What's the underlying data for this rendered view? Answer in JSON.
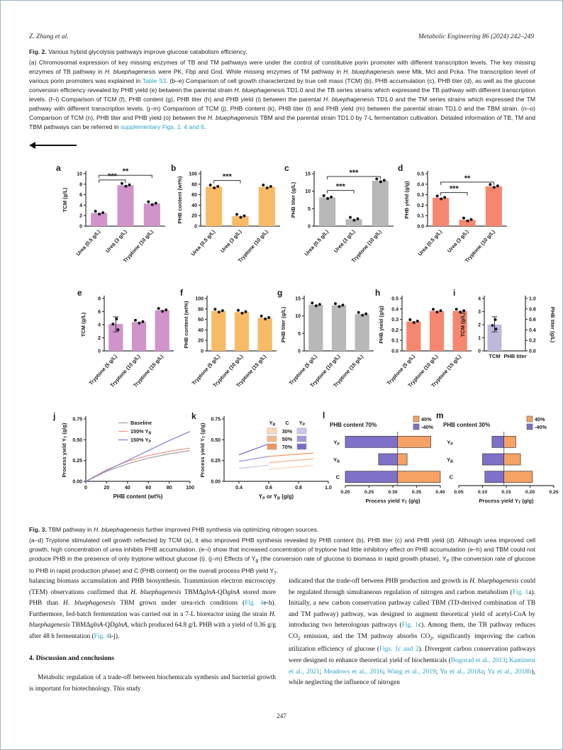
{
  "header": {
    "left": "Z. Zhang et al.",
    "right": "Metabolic Engineering 86 (2024) 242–249"
  },
  "page_number": "247",
  "colors": {
    "link_blue": "#2aa2c6",
    "bar_plum": "#d094cb",
    "bar_orange": "#f7bb66",
    "bar_gray": "#b8b8b8",
    "bar_salmon": "#f6876f",
    "bar_lavender": "#bfb8dd",
    "tornado_orange": "#f5a264",
    "tornado_purple": "#7f70ca"
  },
  "fig2": {
    "title": [
      {
        "t": "Fig. 2.",
        "s": "b"
      },
      {
        "t": " Various hybrid glycolysis pathways improve glucose catabolism efficiency."
      }
    ],
    "body": [
      {
        "t": "(a) Chromosomal expression of key missing enzymes of TB and TM pathways were under the control of constitutive porin promoter with different transcription levels. The key missing enzymes of TB pathway in "
      },
      {
        "t": "H. bluephagenesis",
        "s": "i"
      },
      {
        "t": " were PK, Fbp and Gnd. While missing enzymes of TM pathway in "
      },
      {
        "t": "H. bluephagenesis",
        "s": "i"
      },
      {
        "t": " were Mtk, Mcl and Pcka. The transcription level of various porin promoters was explained in "
      },
      {
        "t": "Table S3",
        "s": "l"
      },
      {
        "t": ". (b–e) Comparison of cell growth characterized by true cell mass (TCM) (b), PHB accumulation (c), PHB titer (d), as well as the glucose conversion efficiency revealed by PHB yield (e) between the parental strain "
      },
      {
        "t": "H. bluephagenesis",
        "s": "i"
      },
      {
        "t": " TD1.0 and the TB series strains which expressed the TB pathway with different transcription levels. (f–i) Comparison of TCM (f), PHB content (g), PHB titer (h) and PHB yield (i) between the parental "
      },
      {
        "t": "H. bluephagenesis",
        "s": "i"
      },
      {
        "t": " TD1.0 and the TM series strains which expressed the TM pathway with different transcription levels. (j–m) Comparison of TCM (j), PHB content (k), PHB titer (l) and PHB yield (m) between the parental strain TD1.0 and the TBM strain. (n–o) Comparison of TCM (n), PHB titer and PHB yield (o) between the "
      },
      {
        "t": "H. bluephagenesis",
        "s": "i"
      },
      {
        "t": " TBM and the parental strain TD1.0 by 7-L fermentation cultivation. Detailed information of TB, TM and TBM pathways can be referred in "
      },
      {
        "t": "supplementary Figs. 1, 4 and 6",
        "s": "l"
      },
      {
        "t": "."
      }
    ]
  },
  "fig3": {
    "title": [
      {
        "t": "Fig. 3.",
        "s": "b"
      },
      {
        "t": " TBM pathway in "
      },
      {
        "t": "H. bluephagenesis",
        "s": "i"
      },
      {
        "t": " further improved PHB synthesis via optimizing nitrogen sources."
      }
    ],
    "body": [
      {
        "t": "(a–d) Tryptone stimulated cell growth reflected by TCM (a), it also improved PHB synthesis revealed by PHB content (b), PHB titer (c) and PHB yield (d). Although urea improved cell growth, high concentration of urea inhibits PHB accumulation. (e–i) show that increased concentration of tryptone had little inhibitory effect on PHB accumulation (e–h) and TBM could not produce PHB in the presence of only tryptone without glucose (i). (j–m) Effects of Y"
      },
      {
        "t": "B",
        "s": "sub"
      },
      {
        "t": " (the conversion rate of glucose to biomass in rapid growth phase), Y"
      },
      {
        "t": "P",
        "s": "sub"
      },
      {
        "t": " (the conversion rate of glucose to PHB in rapid production phase) and C (PHB content) on the overall process PHB yield Y"
      },
      {
        "t": "T",
        "s": "sub"
      },
      {
        "t": "."
      }
    ]
  },
  "article": {
    "heading": "4. Discussion and conclusions",
    "left_p1": [
      {
        "t": "balancing biomass accumulation and PHB biosynthesis. Transmission electron microscopy (TEM) observations confirmed that "
      },
      {
        "t": "H. bluephagenesis",
        "s": "i"
      },
      {
        "t": " TBMΔ"
      },
      {
        "t": "glnA",
        "s": "i"
      },
      {
        "t": "-QD"
      },
      {
        "t": "glnA",
        "s": "i"
      },
      {
        "t": " stored more PHB than "
      },
      {
        "t": "H. bluephagenesis",
        "s": "i"
      },
      {
        "t": " TBM grown under urea-rich conditions ("
      },
      {
        "t": "Fig. 4",
        "s": "l"
      },
      {
        "t": "e-h). Furthermore, fed-batch fermentation was carried out in a 7-L bioreactor using the strain "
      },
      {
        "t": "H. bluephagenesis",
        "s": "i"
      },
      {
        "t": " TBMΔ"
      },
      {
        "t": "glnA",
        "s": "i"
      },
      {
        "t": "-QD"
      },
      {
        "t": "glnA",
        "s": "i"
      },
      {
        "t": ", which produced 64.8 g/L PHB with a yield of 0.36 g/g after 48 h fermentation ("
      },
      {
        "t": "Fig. 4",
        "s": "l"
      },
      {
        "t": "i-j)."
      }
    ],
    "left_p2": [
      {
        "t": "Metabolic regulation of a trade-off between biochemicals synthesis and bacterial growth is important for biotechnology. This study"
      }
    ],
    "right_p1": [
      {
        "t": "indicated that the trade-off between PHB production and growth in "
      },
      {
        "t": "H. bluephagenesis",
        "s": "i"
      },
      {
        "t": " could be regulated through simultaneous regulation of nitrogen and carbon metabolism ("
      },
      {
        "t": "Fig. 1",
        "s": "l"
      },
      {
        "t": "a). Initially, a new carbon conservation pathway called TBM (TD-derived combination of TB and TM pathway) pathway, was designed to augment theoretical yield of acetyl-CoA by introducing two heterologous pathways ("
      },
      {
        "t": "Fig. 1",
        "s": "l"
      },
      {
        "t": "c). Among them, the TB pathway reduces CO"
      },
      {
        "t": "2",
        "s": "sub"
      },
      {
        "t": " emission, and the TM pathway absorbs CO"
      },
      {
        "t": "2",
        "s": "sub"
      },
      {
        "t": ", significantly improving the carbon utilization efficiency of glucose ("
      },
      {
        "t": "Figs. 1c and 2",
        "s": "l"
      },
      {
        "t": "). Divergent carbon conservation pathways were designed to enhance theoretical yield of biochemicals ("
      },
      {
        "t": "Bogorad et al., 2013",
        "s": "l"
      },
      {
        "t": "; "
      },
      {
        "t": "Kamineni et al., 2021",
        "s": "l"
      },
      {
        "t": "; "
      },
      {
        "t": "Meadows et al., 2016",
        "s": "l"
      },
      {
        "t": "; "
      },
      {
        "t": "Wang et al., 2019",
        "s": "l"
      },
      {
        "t": "; "
      },
      {
        "t": "Yu et al., 2018a",
        "s": "l"
      },
      {
        "t": "; "
      },
      {
        "t": "Yu et al., 2018b",
        "s": "l"
      },
      {
        "t": "), while neglecting the influence of nitrogen"
      }
    ]
  },
  "chart_data": [
    {
      "panel": "a",
      "type": "bar",
      "ylabel": "TCM (g/L)",
      "ylim": [
        0,
        10
      ],
      "yticks": [
        "0",
        "2",
        "4",
        "6",
        "8",
        "10"
      ],
      "categories": [
        "Urea (0.5 g/L)",
        "Urea (3 g/L)",
        "Tryptone (10 g/L)"
      ],
      "values": [
        2.5,
        7.8,
        4.3
      ],
      "bar_color": "#d094cb",
      "sig": [
        {
          "i": 0,
          "j": 1,
          "label": "***",
          "y": 8.8
        },
        {
          "i": 0,
          "j": 2,
          "label": "**",
          "y": 9.7
        }
      ]
    },
    {
      "panel": "b",
      "type": "bar",
      "ylabel": "PHB content (wt%)",
      "ylim": [
        0,
        100
      ],
      "yticks": [
        "0",
        "20",
        "40",
        "60",
        "80",
        "100"
      ],
      "categories": [
        "Urea (0.5 g/L)",
        "Urea (3 g/L)",
        "Tryptone (10 g/L)"
      ],
      "values": [
        75,
        19,
        75
      ],
      "bar_color": "#f7bb66",
      "sig": [
        {
          "i": 0,
          "j": 1,
          "label": "***",
          "y": 87
        }
      ]
    },
    {
      "panel": "c",
      "type": "bar",
      "ylabel": "PHB titer (g/L)",
      "ylim": [
        0,
        15
      ],
      "yticks": [
        "0",
        "5",
        "10",
        "15"
      ],
      "categories": [
        "Urea (0.5 g/L)",
        "Urea (3 g/L)",
        "Tryptone (10 g/L)"
      ],
      "values": [
        8.2,
        2.0,
        13.0
      ],
      "bar_color": "#b8b8b8",
      "sig": [
        {
          "i": 0,
          "j": 1,
          "label": "***",
          "y": 10.2
        },
        {
          "i": 0,
          "j": 2,
          "label": "***",
          "y": 14.2
        }
      ]
    },
    {
      "panel": "d",
      "type": "bar",
      "ylabel": "PHB yield (g/g)",
      "ylim": [
        0,
        0.5
      ],
      "yticks": [
        "0.0",
        "0.1",
        "0.2",
        "0.3",
        "0.4",
        "0.5"
      ],
      "categories": [
        "Urea (0.5 g/L)",
        "Urea (3 g/L)",
        "Tryptone (10 g/L)"
      ],
      "values": [
        0.27,
        0.06,
        0.38
      ],
      "bar_color": "#f6876f",
      "sig": [
        {
          "i": 0,
          "j": 1,
          "label": "***",
          "y": 0.32
        },
        {
          "i": 0,
          "j": 2,
          "label": "**",
          "y": 0.42
        }
      ]
    },
    {
      "panel": "e",
      "type": "bar",
      "ylabel": "TCM (g/L)",
      "ylim": [
        0,
        8
      ],
      "yticks": [
        "0",
        "2",
        "4",
        "6",
        "8"
      ],
      "categories": [
        "Tryptone (5 g/L)",
        "Tryptone (10 g/L)",
        "Tryptone (15 g/L)"
      ],
      "values": [
        4.1,
        4.4,
        6.2
      ],
      "errs": [
        [
          2.9,
          5.2
        ],
        null,
        null
      ],
      "bar_color": "#d094cb"
    },
    {
      "panel": "f",
      "type": "bar",
      "ylabel": "PHB content (wt%)",
      "ylim": [
        0,
        100
      ],
      "yticks": [
        "0",
        "20",
        "40",
        "60",
        "80",
        "100"
      ],
      "categories": [
        "Tryptone (5 g/L)",
        "Tryptone (10 g/L)",
        "Tryptone (15 g/L)"
      ],
      "values": [
        76,
        74,
        63
      ],
      "bar_color": "#f7bb66"
    },
    {
      "panel": "g",
      "type": "bar",
      "ylabel": "PHB titer (g/L)",
      "ylim": [
        0,
        15
      ],
      "yticks": [
        "0",
        "5",
        "10",
        "15"
      ],
      "categories": [
        "Tryptone (5 g/L)",
        "Tryptone (10 g/L)",
        "Tryptone (15 g/L)"
      ],
      "values": [
        13.2,
        13.0,
        10.5
      ],
      "bar_color": "#b8b8b8"
    },
    {
      "panel": "h",
      "type": "bar",
      "ylabel": "PHB yield (g/g)",
      "ylim": [
        0,
        0.5
      ],
      "yticks": [
        "0.0",
        "0.1",
        "0.2",
        "0.3",
        "0.4",
        "0.5"
      ],
      "categories": [
        "Tryptone (5 g/L)",
        "Tryptone (10 g/L)",
        "Tryptone (15 g/L)"
      ],
      "values": [
        0.28,
        0.38,
        0.38
      ],
      "bar_color": "#f6876f"
    },
    {
      "panel": "i",
      "type": "dualbar",
      "ylabel_left": "TCM (g/L)",
      "ylabel_right": "PHB titer (g/L)",
      "ylim_left": [
        0,
        4
      ],
      "yticks_left": [
        "0",
        "1",
        "2",
        "3",
        "4"
      ],
      "ylim_right": [
        0,
        1.0
      ],
      "yticks_right": [
        "0.0",
        "0.2",
        "0.4",
        "0.6",
        "0.8",
        "1.0"
      ],
      "categories": [
        "TCM",
        "PHB titer"
      ],
      "values": [
        2.0,
        0
      ],
      "errs": [
        [
          1.45,
          2.6
        ],
        null
      ],
      "bar_color": "#bfb8dd"
    },
    {
      "panel": "j",
      "type": "line",
      "ylabel": "Process yield Y_T (g/g)",
      "xlabel": "PHB content (wt%)",
      "xlim": [
        0,
        100
      ],
      "xticks": [
        "0",
        "20",
        "40",
        "60",
        "80",
        "100"
      ],
      "ylim": [
        0,
        0.75
      ],
      "yticks": [
        "0.00",
        "0.25",
        "0.50",
        "0.75"
      ],
      "series": [
        {
          "name": "Baseline",
          "color": "#a8a8a8",
          "x": [
            0,
            20,
            40,
            60,
            80,
            100
          ],
          "y": [
            0,
            0.12,
            0.21,
            0.28,
            0.33,
            0.37
          ]
        },
        {
          "name": "150% Y_B",
          "color": "#efa090",
          "x": [
            0,
            20,
            40,
            60,
            80,
            100
          ],
          "y": [
            0,
            0.14,
            0.24,
            0.31,
            0.36,
            0.4
          ]
        },
        {
          "name": "150% Y_P",
          "color": "#8c86d8",
          "x": [
            0,
            20,
            40,
            60,
            80,
            100
          ],
          "y": [
            0,
            0.13,
            0.25,
            0.37,
            0.49,
            0.6
          ]
        }
      ]
    },
    {
      "panel": "k",
      "type": "line",
      "ylabel": "Process yield Y_T (g/g)",
      "xlabel": "Y_P or Y_B (g/g)",
      "xlim": [
        0.3,
        1.0
      ],
      "xticks": [
        "0.4",
        "0.6",
        "0.8",
        "1.0"
      ],
      "ylim": [
        0,
        0.75
      ],
      "yticks": [
        "0.00",
        "0.25",
        "0.50",
        "0.75"
      ],
      "legend_matrix": {
        "headers": [
          "Y_B",
          "C",
          "Y_P"
        ],
        "rows": [
          {
            "label": "30%",
            "left": "#fad9bd",
            "right": "#cdc7ec"
          },
          {
            "label": "50%",
            "left": "#f7b98c",
            "right": "#a49ade"
          },
          {
            "label": "70%",
            "left": "#f2955a",
            "right": "#7a6bc7"
          }
        ]
      },
      "series": [
        {
          "name": "Y_P 30%",
          "color": "#cdc7ec",
          "x": [
            0.4,
            0.6
          ],
          "y": [
            0.155,
            0.195
          ]
        },
        {
          "name": "Y_P 50%",
          "color": "#a49ade",
          "x": [
            0.4,
            0.6
          ],
          "y": [
            0.24,
            0.3
          ]
        },
        {
          "name": "Y_P 70%",
          "color": "#7a6bc7",
          "x": [
            0.4,
            0.6
          ],
          "y": [
            0.32,
            0.45
          ]
        },
        {
          "name": "Y_B 30%",
          "color": "#fad9bd",
          "x": [
            0.6,
            0.9
          ],
          "y": [
            0.145,
            0.19
          ]
        },
        {
          "name": "Y_B 50%",
          "color": "#f7b98c",
          "x": [
            0.6,
            0.9
          ],
          "y": [
            0.225,
            0.27
          ]
        },
        {
          "name": "Y_B 70%",
          "color": "#f2955a",
          "x": [
            0.6,
            0.9
          ],
          "y": [
            0.3,
            0.34
          ]
        }
      ]
    },
    {
      "panel": "l",
      "type": "tornado",
      "title": "PHB content  70%",
      "xlabel": "Process yield Y_T (g/g)",
      "xlim": [
        0.2,
        0.4
      ],
      "xticks": [
        "0.20",
        "0.25",
        "0.30",
        "0.35",
        "0.40"
      ],
      "base": 0.31,
      "rows": [
        {
          "label": "Y_P",
          "low": 0.2,
          "high": 0.38
        },
        {
          "label": "Y_B",
          "low": 0.27,
          "high": 0.33
        },
        {
          "label": "C",
          "low": 0.2,
          "high": 0.4
        }
      ],
      "legend": [
        {
          "label": "40%",
          "color": "#f5a264"
        },
        {
          "label": "-40%",
          "color": "#7f70ca"
        }
      ]
    },
    {
      "panel": "m",
      "type": "tornado",
      "title": "PHB content  30%",
      "xlabel": "Process yield Y_T (g/g)",
      "xlim": [
        0.05,
        0.25
      ],
      "xticks": [
        "0.05",
        "0.10",
        "0.15",
        "0.20",
        "0.25"
      ],
      "base": 0.145,
      "rows": [
        {
          "label": "Y_P",
          "low": 0.12,
          "high": 0.17
        },
        {
          "label": "Y_B",
          "low": 0.1,
          "high": 0.18
        },
        {
          "label": "C",
          "low": 0.105,
          "high": 0.205
        }
      ],
      "legend": [
        {
          "label": "40%",
          "color": "#f5a264"
        },
        {
          "label": "-40%",
          "color": "#7f70ca"
        }
      ]
    }
  ]
}
